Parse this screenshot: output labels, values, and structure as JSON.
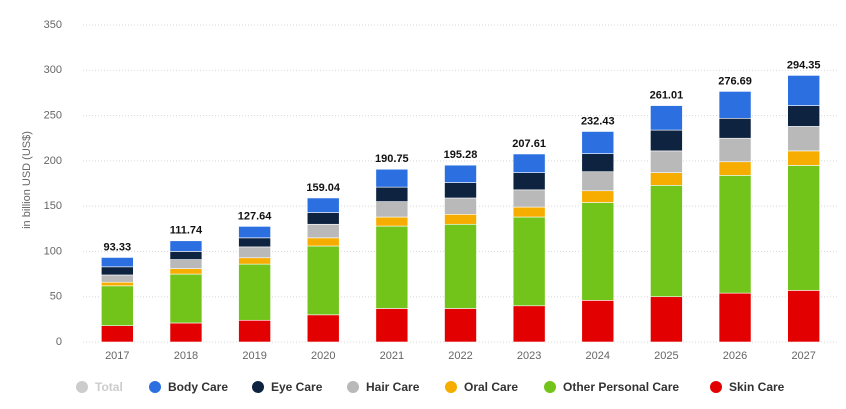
{
  "chart_data": {
    "type": "stacked-bar",
    "y_label": "in billion USD (US$)",
    "categories": [
      "2017",
      "2018",
      "2019",
      "2020",
      "2021",
      "2022",
      "2023",
      "2024",
      "2025",
      "2026",
      "2027"
    ],
    "ylim": [
      0,
      350
    ],
    "yticks": [
      0,
      50,
      100,
      150,
      200,
      250,
      300,
      350
    ],
    "grid": true,
    "series": [
      {
        "name": "Total",
        "color": "#cccccc",
        "visible": false,
        "values": [
          93.33,
          111.74,
          127.64,
          159.04,
          190.75,
          195.28,
          207.61,
          232.43,
          261.01,
          276.69,
          294.35
        ]
      },
      {
        "name": "Body Care",
        "color": "#2b6fe1",
        "values": [
          10.33,
          11.74,
          12.64,
          16.04,
          19.75,
          19.28,
          20.61,
          24.43,
          27.01,
          29.69,
          33.35
        ]
      },
      {
        "name": "Eye Care",
        "color": "#0e2340",
        "values": [
          9,
          9,
          10,
          13,
          16,
          17,
          19,
          20,
          23,
          22,
          23
        ]
      },
      {
        "name": "Hair Care",
        "color": "#b9b9b9",
        "values": [
          8,
          10,
          12,
          15,
          17,
          18,
          19,
          21,
          24,
          26,
          27
        ]
      },
      {
        "name": "Oral Care",
        "color": "#f7ad00",
        "values": [
          4,
          6,
          7,
          9,
          10,
          11,
          11,
          13,
          14,
          15,
          16
        ]
      },
      {
        "name": "Other Personal Care",
        "color": "#72c41a",
        "values": [
          44,
          54,
          62,
          76,
          91,
          93,
          98,
          108,
          123,
          130,
          138
        ]
      },
      {
        "name": "Skin Care",
        "color": "#e20000",
        "values": [
          18,
          21,
          24,
          30,
          37,
          37,
          40,
          46,
          50,
          54,
          57
        ]
      }
    ]
  }
}
